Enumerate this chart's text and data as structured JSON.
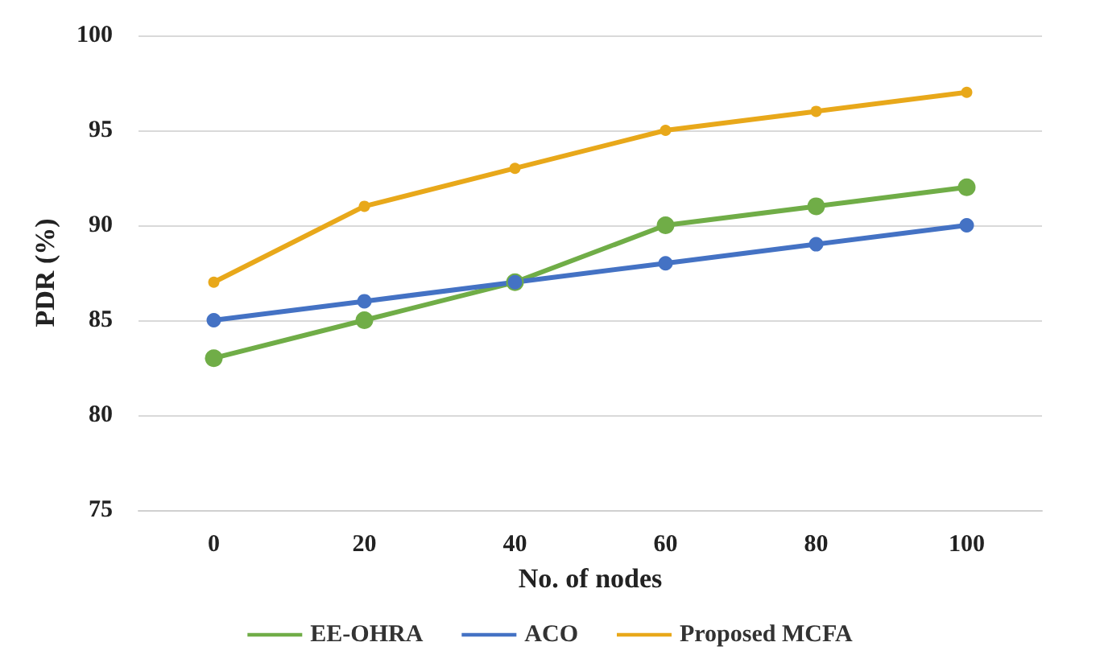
{
  "chart_data": {
    "type": "line",
    "xlabel": "No. of nodes",
    "ylabel": "PDR (%)",
    "categories": [
      "0",
      "20",
      "40",
      "60",
      "80",
      "100"
    ],
    "series": [
      {
        "name": "EE-OHRA",
        "color": "#70ad47",
        "values": [
          83,
          85,
          87,
          90,
          91,
          92
        ]
      },
      {
        "name": "ACO",
        "color": "#4472c4",
        "values": [
          85,
          86,
          87,
          88,
          89,
          90
        ]
      },
      {
        "name": "Proposed MCFA",
        "color": "#e8a81a",
        "values": [
          87,
          91,
          93,
          95,
          96,
          97
        ]
      }
    ],
    "ylim": [
      75,
      100
    ],
    "yticks": [
      75,
      80,
      85,
      90,
      95,
      100
    ],
    "grid": "y",
    "legend": "bottom",
    "marker": "circle",
    "line_style": "solid"
  }
}
